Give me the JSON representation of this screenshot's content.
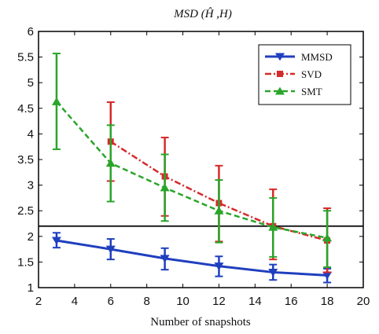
{
  "chart_data": {
    "type": "line",
    "title": "MSD (Ĥ ,H)",
    "xlabel": "Number of snapshots",
    "ylabel": "",
    "xlim": [
      2,
      20
    ],
    "ylim": [
      1,
      6
    ],
    "xticks": [
      2,
      4,
      6,
      8,
      10,
      12,
      14,
      16,
      18,
      20
    ],
    "yticks": [
      1,
      1.5,
      2,
      2.5,
      3,
      3.5,
      4,
      4.5,
      5,
      5.5,
      6
    ],
    "ytick_labels": [
      "1",
      "1.5",
      "2",
      "2.5",
      "3",
      "3.5",
      "4",
      "4.5",
      "5",
      "5.5",
      "6"
    ],
    "grid": false,
    "legend_position": "top-right",
    "reference_line": {
      "y": 2.2,
      "color": "#000000"
    },
    "series": [
      {
        "name": "MMSD",
        "color": "#1f3fbf",
        "style": "solid",
        "marker": "triangle-down",
        "x": [
          3,
          6,
          9,
          12,
          15,
          18
        ],
        "y": [
          1.92,
          1.75,
          1.57,
          1.42,
          1.3,
          1.24
        ],
        "err_low": [
          1.78,
          1.55,
          1.35,
          1.22,
          1.15,
          1.1
        ],
        "err_high": [
          2.07,
          1.95,
          1.77,
          1.61,
          1.45,
          1.37
        ]
      },
      {
        "name": "SVD",
        "color": "#d62a2a",
        "style": "dashdot",
        "marker": "square",
        "x": [
          6,
          9,
          12,
          15,
          18
        ],
        "y": [
          3.85,
          3.17,
          2.65,
          2.2,
          1.92
        ],
        "err_low": [
          3.08,
          2.4,
          1.9,
          1.55,
          1.3
        ],
        "err_high": [
          4.62,
          3.93,
          3.38,
          2.92,
          2.55
        ]
      },
      {
        "name": "SMT",
        "color": "#2aa52a",
        "style": "dashed",
        "marker": "triangle-up",
        "x": [
          3,
          6,
          9,
          12,
          15,
          18
        ],
        "y": [
          4.63,
          3.43,
          2.95,
          2.5,
          2.18,
          1.97
        ],
        "err_low": [
          3.7,
          2.68,
          2.3,
          1.88,
          1.6,
          1.4
        ],
        "err_high": [
          5.57,
          4.17,
          3.6,
          3.1,
          2.75,
          2.5
        ]
      }
    ]
  }
}
